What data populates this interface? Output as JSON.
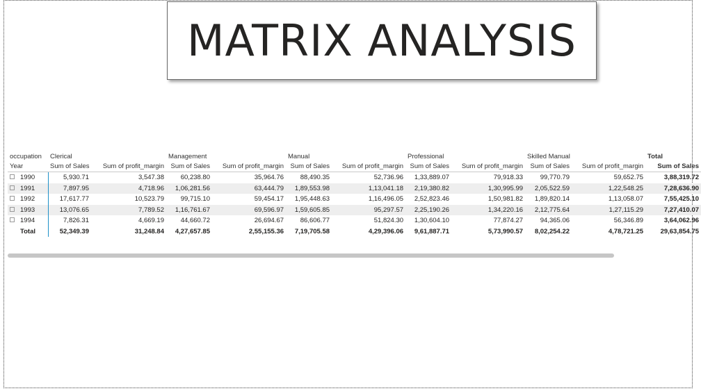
{
  "title": "MATRIX ANALYSIS",
  "matrix": {
    "corner_col_label": "occupation",
    "corner_row_label": "Year",
    "occupations": [
      "Clerical",
      "Management",
      "Manual",
      "Professional",
      "Skilled Manual",
      "Total"
    ],
    "measures": [
      "Sum of Sales",
      "Sum of profit_margin"
    ],
    "rows": [
      {
        "year": "1990",
        "cells": [
          "5,930.71",
          "3,547.38",
          "60,238.80",
          "35,964.76",
          "88,490.35",
          "52,736.96",
          "1,33,889.07",
          "79,918.33",
          "99,770.79",
          "59,652.75",
          "3,88,319.72"
        ]
      },
      {
        "year": "1991",
        "cells": [
          "7,897.95",
          "4,718.96",
          "1,06,281.56",
          "63,444.79",
          "1,89,553.98",
          "1,13,041.18",
          "2,19,380.82",
          "1,30,995.99",
          "2,05,522.59",
          "1,22,548.25",
          "7,28,636.90"
        ]
      },
      {
        "year": "1992",
        "cells": [
          "17,617.77",
          "10,523.79",
          "99,715.10",
          "59,454.17",
          "1,95,448.63",
          "1,16,496.05",
          "2,52,823.46",
          "1,50,981.82",
          "1,89,820.14",
          "1,13,058.07",
          "7,55,425.10"
        ]
      },
      {
        "year": "1993",
        "cells": [
          "13,076.65",
          "7,789.52",
          "1,16,761.67",
          "69,596.97",
          "1,59,605.85",
          "95,297.57",
          "2,25,190.26",
          "1,34,220.16",
          "2,12,775.64",
          "1,27,115.29",
          "7,27,410.07"
        ]
      },
      {
        "year": "1994",
        "cells": [
          "7,826.31",
          "4,669.19",
          "44,660.72",
          "26,694.67",
          "86,606.77",
          "51,824.30",
          "1,30,604.10",
          "77,874.27",
          "94,365.06",
          "56,346.89",
          "3,64,062.96"
        ]
      }
    ],
    "total_row": {
      "label": "Total",
      "cells": [
        "52,349.39",
        "31,248.84",
        "4,27,657.85",
        "2,55,155.36",
        "7,19,705.58",
        "4,29,396.06",
        "9,61,887.71",
        "5,73,990.57",
        "8,02,254.22",
        "4,78,721.25",
        "29,63,854.75"
      ]
    }
  }
}
